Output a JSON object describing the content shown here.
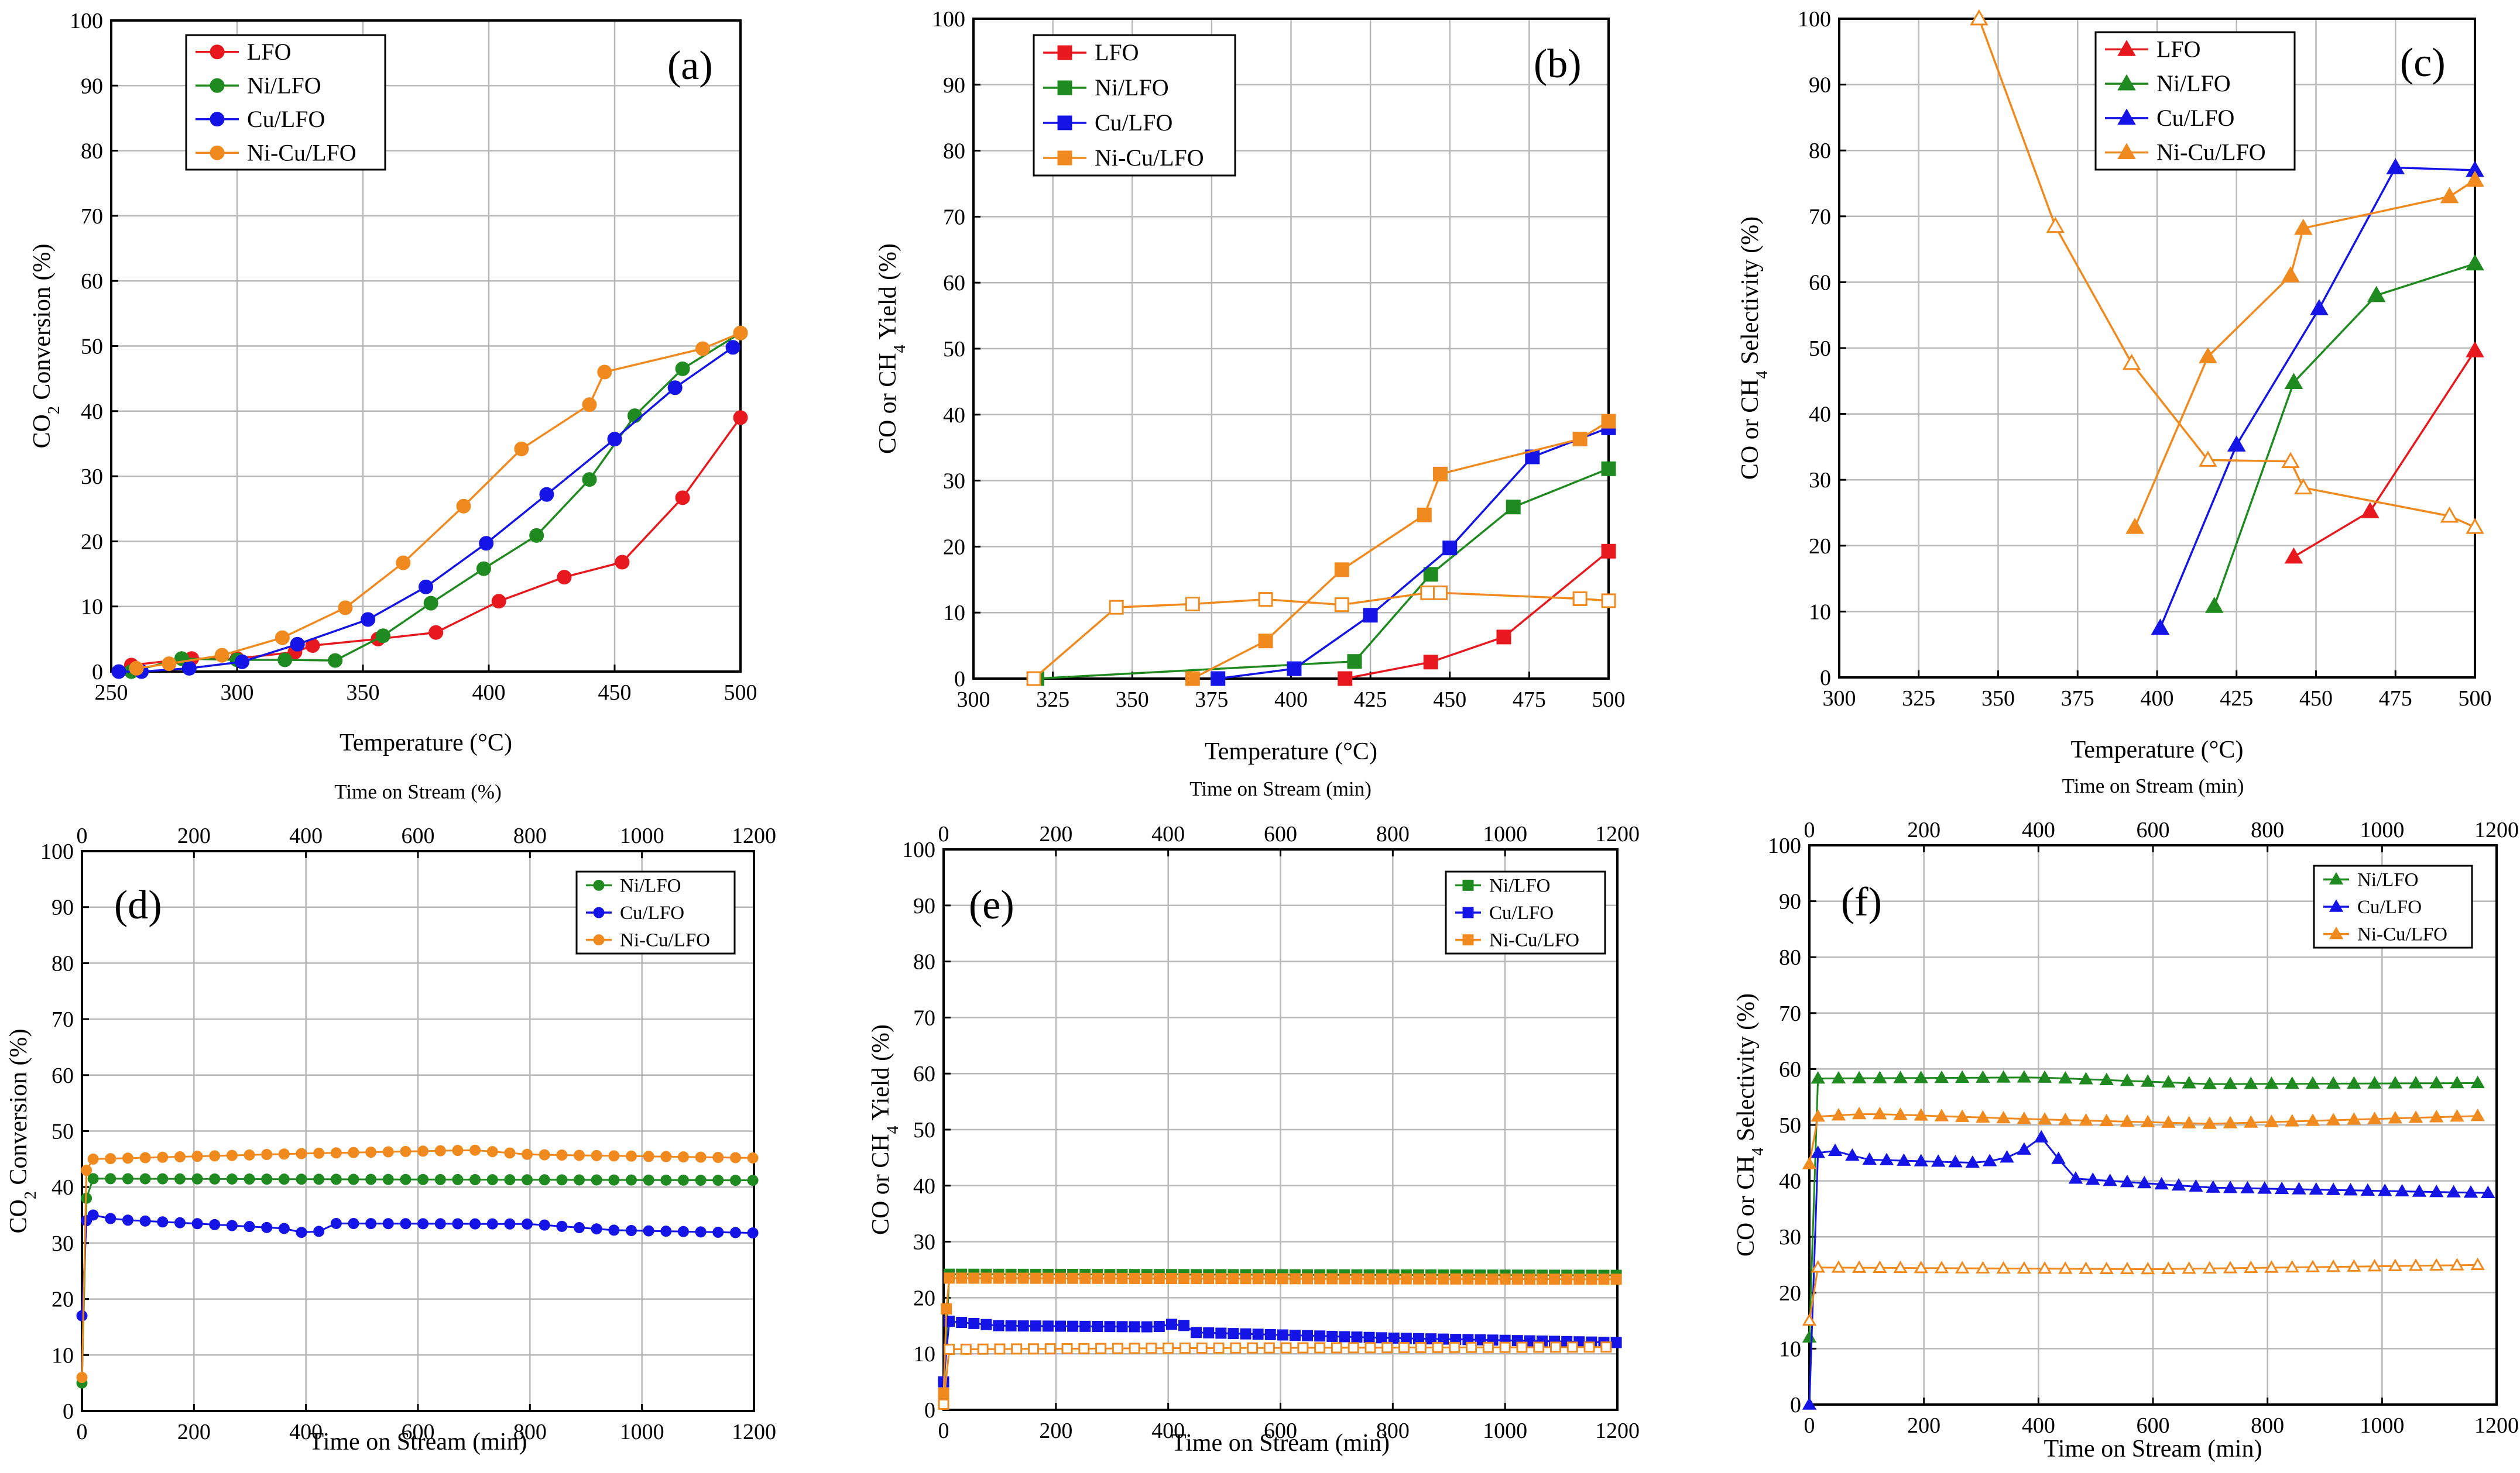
{
  "chart_data": [
    {
      "id": "a",
      "type": "line",
      "panel_label": "(a)",
      "xlabel": "Temperature (°C)",
      "ylabel": "CO",
      "ylabel_parts": {
        "main": "CO",
        "sub": "2",
        "rest": " Conversion (%)"
      },
      "xlim": [
        250,
        500
      ],
      "ylim": [
        0,
        100
      ],
      "xticks": [
        250,
        300,
        350,
        400,
        450,
        500
      ],
      "yticks": [
        0,
        10,
        20,
        30,
        40,
        50,
        60,
        70,
        80,
        90,
        100
      ],
      "legend": [
        "LFO",
        "Ni/LFO",
        "Cu/LFO",
        "Ni-Cu/LFO"
      ],
      "series": [
        {
          "name": "LFO",
          "color": "#e8191e",
          "marker": "circle",
          "fill": true,
          "x": [
            258,
            282,
            300,
            323,
            330,
            356,
            379,
            404,
            430,
            453,
            477,
            500
          ],
          "y": [
            1,
            2,
            2,
            3,
            4,
            5,
            6,
            10.8,
            14.5,
            16.8,
            26.7,
            39
          ]
        },
        {
          "name": "Ni/LFO",
          "color": "#1f8a1f",
          "marker": "circle",
          "fill": true,
          "x": [
            258,
            278,
            300,
            319,
            339,
            358,
            377,
            398,
            419,
            440,
            458,
            477,
            500
          ],
          "y": [
            0,
            2,
            1.8,
            1.8,
            1.7,
            5.5,
            10.5,
            15.8,
            20.9,
            29.5,
            39.3,
            46.5,
            52
          ]
        },
        {
          "name": "Cu/LFO",
          "color": "#1414e6",
          "marker": "circle",
          "fill": true,
          "x": [
            253,
            262,
            281,
            302,
            324,
            352,
            375,
            399,
            423,
            450,
            474,
            497
          ],
          "y": [
            0,
            0,
            0.5,
            1.5,
            4.2,
            8,
            13,
            19.7,
            27.2,
            35.7,
            43.6,
            49.8
          ]
        },
        {
          "name": "Ni-Cu/LFO",
          "color": "#f08a1e",
          "marker": "circle",
          "fill": true,
          "x": [
            260,
            273,
            294,
            318,
            343,
            366,
            390,
            413,
            440,
            446,
            485,
            500
          ],
          "y": [
            0.5,
            1.2,
            2.5,
            5.2,
            9.8,
            16.7,
            25.4,
            34.2,
            41,
            46,
            49.6,
            52
          ]
        }
      ]
    },
    {
      "id": "b",
      "type": "line",
      "panel_label": "(b)",
      "xlabel": "Temperature (°C)",
      "ylabel": "CO or CH",
      "ylabel_parts": {
        "main": "CO or CH",
        "sub": "4",
        "rest": "  Yield (%)"
      },
      "xlim": [
        300,
        500
      ],
      "ylim": [
        0,
        100
      ],
      "xticks": [
        300,
        325,
        350,
        375,
        400,
        425,
        450,
        475,
        500
      ],
      "yticks": [
        0,
        10,
        20,
        30,
        40,
        50,
        60,
        70,
        80,
        90,
        100
      ],
      "legend": [
        "LFO",
        "Ni/LFO",
        "Cu/LFO",
        "Ni-Cu/LFO"
      ],
      "series": [
        {
          "name": "LFO",
          "color": "#e8191e",
          "marker": "square",
          "fill": true,
          "x": [
            417,
            444,
            467,
            500
          ],
          "y": [
            0,
            2.5,
            6.3,
            19.3
          ]
        },
        {
          "name": "Ni/LFO",
          "color": "#1f8a1f",
          "marker": "square",
          "fill": true,
          "x": [
            320,
            420,
            444,
            470,
            500
          ],
          "y": [
            0,
            2.6,
            15.8,
            26,
            31.8
          ]
        },
        {
          "name": "Cu/LFO",
          "color": "#1414e6",
          "marker": "square",
          "fill": true,
          "x": [
            377,
            401,
            425,
            450,
            476,
            500
          ],
          "y": [
            0,
            1.5,
            9.6,
            19.8,
            33.6,
            38
          ]
        },
        {
          "name": "Ni-Cu/LFO",
          "color": "#f08a1e",
          "marker": "square",
          "fill": true,
          "x": [
            369,
            392,
            416,
            442,
            447,
            491,
            500
          ],
          "y": [
            0,
            5.7,
            16.5,
            24.8,
            31,
            36.3,
            39
          ]
        },
        {
          "name": "Ni-Cu/LFO CO",
          "color": "#f08a1e",
          "marker": "square",
          "fill": false,
          "x": [
            319,
            345,
            369,
            392,
            416,
            443,
            447,
            491,
            500
          ],
          "y": [
            0,
            10.8,
            11.3,
            12,
            11.2,
            13,
            13,
            12.1,
            11.8
          ]
        }
      ]
    },
    {
      "id": "c",
      "type": "line",
      "panel_label": "(c)",
      "xlabel": "Temperature (°C)",
      "ylabel": "CO or CH",
      "ylabel_parts": {
        "main": "CO or CH",
        "sub": "4",
        "rest": " Selectivity (%)"
      },
      "xlim": [
        300,
        500
      ],
      "ylim": [
        0,
        100
      ],
      "xticks": [
        300,
        325,
        350,
        375,
        400,
        425,
        450,
        475,
        500
      ],
      "yticks": [
        0,
        10,
        20,
        30,
        40,
        50,
        60,
        70,
        80,
        90,
        100
      ],
      "legend": [
        "LFO",
        "Ni/LFO",
        "Cu/LFO",
        "Ni-Cu/LFO"
      ],
      "series": [
        {
          "name": "LFO",
          "color": "#e8191e",
          "marker": "triangle",
          "fill": true,
          "x": [
            443,
            467,
            500
          ],
          "y": [
            18.3,
            25.2,
            49.6
          ]
        },
        {
          "name": "Ni/LFO",
          "color": "#1f8a1f",
          "marker": "triangle",
          "fill": true,
          "x": [
            418,
            443,
            469,
            500
          ],
          "y": [
            10.8,
            44.8,
            58,
            62.8
          ]
        },
        {
          "name": "Cu/LFO",
          "color": "#1414e6",
          "marker": "triangle",
          "fill": true,
          "x": [
            401,
            425,
            451,
            475,
            500
          ],
          "y": [
            7.5,
            35.3,
            56,
            77.4,
            77
          ]
        },
        {
          "name": "Ni-Cu/LFO",
          "color": "#f08a1e",
          "marker": "triangle",
          "fill": true,
          "x": [
            393,
            416,
            442,
            446,
            492,
            500
          ],
          "y": [
            22.8,
            48.7,
            61,
            68.2,
            73,
            75.5
          ]
        },
        {
          "name": "Ni-Cu/LFO CO",
          "color": "#f08a1e",
          "marker": "triangle",
          "fill": false,
          "x": [
            344,
            368,
            392,
            416,
            442,
            446,
            492,
            500
          ],
          "y": [
            100,
            68.5,
            47.7,
            33,
            32.8,
            28.8,
            24.5,
            22.8
          ]
        }
      ]
    },
    {
      "id": "d",
      "type": "line",
      "panel_label": "(d)",
      "xlabel": "Time on Stream (min)",
      "top_xlabel": "Time on Stream (%)",
      "ylabel": "CO",
      "ylabel_parts": {
        "main": "CO",
        "sub": "2",
        "rest": " Conversion (%)"
      },
      "xlim": [
        0,
        1200
      ],
      "ylim": [
        0,
        100
      ],
      "xticks": [
        0,
        200,
        400,
        600,
        800,
        1000,
        1200
      ],
      "yticks": [
        0,
        10,
        20,
        30,
        40,
        50,
        60,
        70,
        80,
        90,
        100
      ],
      "legend": [
        "Ni/LFO",
        "Cu/LFO",
        "Ni-Cu/LFO"
      ],
      "series": [
        {
          "name": "Ni/LFO",
          "color": "#1f8a1f",
          "marker": "circle",
          "fill": true,
          "x0": 20,
          "dx": 31,
          "lead": [
            [
              0,
              5
            ],
            [
              8,
              38
            ]
          ],
          "profile": [
            [
              20,
              41.5
            ],
            [
              1200,
              41.2
            ]
          ]
        },
        {
          "name": "Cu/LFO",
          "color": "#1414e6",
          "marker": "circle",
          "fill": true,
          "x0": 20,
          "dx": 31,
          "lead": [
            [
              0,
              17
            ],
            [
              8,
              34
            ]
          ],
          "profile": [
            [
              20,
              35
            ],
            [
              60,
              34.2
            ],
            [
              200,
              33.5
            ],
            [
              380,
              32.5
            ],
            [
              410,
              31
            ],
            [
              440,
              33.5
            ],
            [
              800,
              33.4
            ],
            [
              950,
              32.3
            ],
            [
              1200,
              31.8
            ]
          ]
        },
        {
          "name": "Ni-Cu/LFO",
          "color": "#f08a1e",
          "marker": "circle",
          "fill": true,
          "x0": 20,
          "dx": 31,
          "lead": [
            [
              0,
              6
            ],
            [
              8,
              43
            ]
          ],
          "profile": [
            [
              20,
              45
            ],
            [
              400,
              46
            ],
            [
              700,
              46.6
            ],
            [
              800,
              45.8
            ],
            [
              1200,
              45.2
            ]
          ]
        }
      ]
    },
    {
      "id": "e",
      "type": "line",
      "panel_label": "(e)",
      "xlabel": "Time on Stream (min)",
      "top_xlabel": "Time on Stream (min)",
      "ylabel": "CO or CH",
      "ylabel_parts": {
        "main": "CO or CH",
        "sub": "4",
        "rest": " Yield (%)"
      },
      "xlim": [
        0,
        1200
      ],
      "ylim": [
        0,
        100
      ],
      "xticks": [
        0,
        200,
        400,
        600,
        800,
        1000,
        1200
      ],
      "yticks": [
        0,
        10,
        20,
        30,
        40,
        50,
        60,
        70,
        80,
        90,
        100
      ],
      "legend": [
        "Ni/LFO",
        "Cu/LFO",
        "Ni-Cu/LFO"
      ],
      "series": [
        {
          "name": "Ni/LFO",
          "color": "#1f8a1f",
          "marker": "square",
          "fill": true,
          "x0": 10,
          "dx": 22,
          "lead": [
            [
              0,
              2
            ]
          ],
          "profile": [
            [
              10,
              24.2
            ],
            [
              1200,
              24
            ]
          ]
        },
        {
          "name": "Cu/LFO",
          "color": "#1414e6",
          "marker": "square",
          "fill": true,
          "x0": 10,
          "dx": 22,
          "lead": [
            [
              0,
              5
            ]
          ],
          "profile": [
            [
              10,
              15.8
            ],
            [
              100,
              15
            ],
            [
              380,
              14.8
            ],
            [
              420,
              15.5
            ],
            [
              450,
              13.8
            ],
            [
              800,
              12.8
            ],
            [
              1200,
              12
            ]
          ]
        },
        {
          "name": "Ni-Cu/LFO",
          "color": "#f08a1e",
          "marker": "square",
          "fill": true,
          "x0": 10,
          "dx": 22,
          "lead": [
            [
              0,
              3
            ],
            [
              5,
              18
            ]
          ],
          "profile": [
            [
              10,
              23.5
            ],
            [
              1200,
              23.3
            ]
          ]
        },
        {
          "name": "Ni-Cu/LFO CO",
          "color": "#f08a1e",
          "marker": "square",
          "fill": false,
          "x0": 10,
          "dx": 30,
          "lead": [
            [
              0,
              1
            ]
          ],
          "profile": [
            [
              10,
              10.8
            ],
            [
              400,
              11
            ],
            [
              1200,
              11.2
            ]
          ]
        }
      ]
    },
    {
      "id": "f",
      "type": "line",
      "panel_label": "(f)",
      "xlabel": "Time on Stream (min)",
      "top_xlabel": "Time on Stream (min)",
      "ylabel": "CO or CH",
      "ylabel_parts": {
        "main": "CO or CH",
        "sub": "4",
        "rest": " Selectivity (%)"
      },
      "xlim": [
        0,
        1200
      ],
      "ylim": [
        0,
        100
      ],
      "xticks": [
        0,
        200,
        400,
        600,
        800,
        1000,
        1200
      ],
      "yticks": [
        0,
        10,
        20,
        30,
        40,
        50,
        60,
        70,
        80,
        90,
        100
      ],
      "legend": [
        "Ni/LFO",
        "Cu/LFO",
        "Ni-Cu/LFO"
      ],
      "series": [
        {
          "name": "Ni/LFO",
          "color": "#1f8a1f",
          "marker": "triangle",
          "fill": true,
          "x0": 15,
          "dx": 36,
          "lead": [
            [
              0,
              12
            ]
          ],
          "profile": [
            [
              15,
              58.3
            ],
            [
              400,
              58.5
            ],
            [
              700,
              57.3
            ],
            [
              1200,
              57.5
            ]
          ]
        },
        {
          "name": "Cu/LFO",
          "color": "#1414e6",
          "marker": "triangle",
          "fill": true,
          "x0": 15,
          "dx": 30,
          "lead": [
            [
              0,
              0
            ]
          ],
          "profile": [
            [
              15,
              45
            ],
            [
              40,
              45.5
            ],
            [
              100,
              43.8
            ],
            [
              300,
              43.2
            ],
            [
              360,
              44.5
            ],
            [
              415,
              48.5
            ],
            [
              450,
              40.5
            ],
            [
              700,
              38.8
            ],
            [
              1200,
              37.8
            ]
          ]
        },
        {
          "name": "Ni-Cu/LFO",
          "color": "#f08a1e",
          "marker": "triangle",
          "fill": true,
          "x0": 15,
          "dx": 36,
          "lead": [
            [
              0,
              43
            ]
          ],
          "profile": [
            [
              15,
              51.5
            ],
            [
              100,
              52
            ],
            [
              400,
              51
            ],
            [
              700,
              50.2
            ],
            [
              1200,
              51.7
            ]
          ]
        },
        {
          "name": "Ni-Cu/LFO CO",
          "color": "#f08a1e",
          "marker": "triangle",
          "fill": false,
          "x0": 15,
          "dx": 36,
          "lead": [
            [
              0,
              15
            ]
          ],
          "profile": [
            [
              15,
              24.5
            ],
            [
              600,
              24.2
            ],
            [
              1200,
              25
            ]
          ]
        }
      ]
    }
  ]
}
